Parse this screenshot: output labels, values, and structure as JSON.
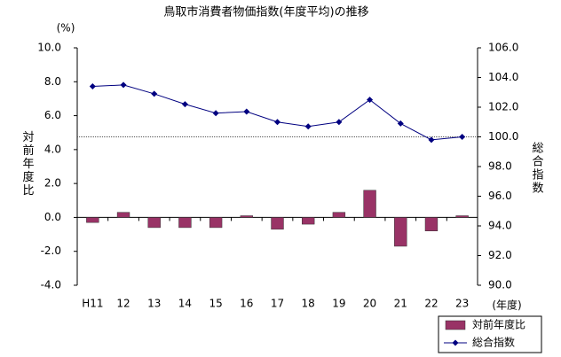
{
  "chart_data": {
    "type": "bar",
    "title": "鳥取市消費者物価指数(年度平均)の推移",
    "y_unit_label": "(%)",
    "ylabel": "対前年度比",
    "y2label": "総合指数",
    "xlabel": "(年度)",
    "categories": [
      "H11",
      "12",
      "13",
      "14",
      "15",
      "16",
      "17",
      "18",
      "19",
      "20",
      "21",
      "22",
      "23"
    ],
    "series": [
      {
        "name": "対前年度比",
        "type": "bar",
        "color": "#993366",
        "values": [
          -0.3,
          0.3,
          -0.6,
          -0.6,
          -0.6,
          0.1,
          -0.7,
          -0.4,
          0.3,
          1.6,
          -1.7,
          -0.8,
          0.1
        ]
      },
      {
        "name": "総合指数",
        "type": "line",
        "axis": "y2",
        "color": "#000080",
        "values": [
          103.4,
          103.5,
          102.9,
          102.2,
          101.6,
          101.7,
          101.0,
          100.7,
          101.0,
          102.5,
          100.9,
          99.8,
          100.0
        ]
      }
    ],
    "ylim": [
      -4,
      10
    ],
    "yticks": [
      {
        "value": -4,
        "label": "-4.0"
      },
      {
        "value": -2,
        "label": "-2.0"
      },
      {
        "value": 0,
        "label": "0.0"
      },
      {
        "value": 2,
        "label": "2.0"
      },
      {
        "value": 4,
        "label": "4.0"
      },
      {
        "value": 6,
        "label": "6.0"
      },
      {
        "value": 8,
        "label": "8.0"
      },
      {
        "value": 10,
        "label": "10.0"
      }
    ],
    "y2lim": [
      90,
      106
    ],
    "y2ticks": [
      {
        "value": 90,
        "label": "90.0"
      },
      {
        "value": 92,
        "label": "92.0"
      },
      {
        "value": 94,
        "label": "94.0"
      },
      {
        "value": 96,
        "label": "96.0"
      },
      {
        "value": 98,
        "label": "98.0"
      },
      {
        "value": 100,
        "label": "100.0"
      },
      {
        "value": 102,
        "label": "102.0"
      },
      {
        "value": 104,
        "label": "104.0"
      },
      {
        "value": 106,
        "label": "106.0"
      }
    ],
    "y2_reference_line": 100,
    "legend": "bottom-right"
  }
}
